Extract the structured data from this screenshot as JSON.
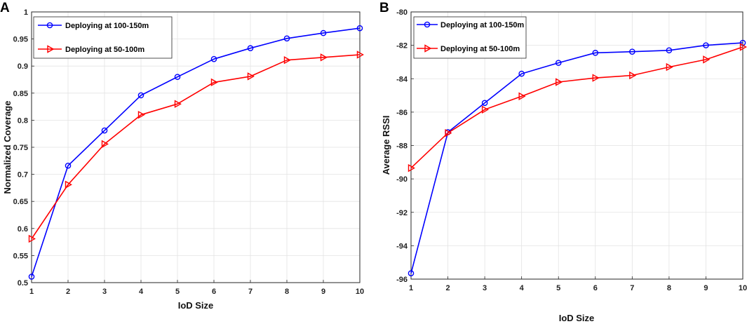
{
  "chart_data": [
    {
      "type": "line",
      "panel_label": "A",
      "title": "",
      "xlabel": "IoD Size",
      "ylabel": "Normalized Coverage",
      "xlim": [
        1,
        10
      ],
      "ylim": [
        0.5,
        1
      ],
      "x": [
        1,
        2,
        3,
        4,
        5,
        6,
        7,
        8,
        9,
        10
      ],
      "xticks": [
        "1",
        "2",
        "3",
        "4",
        "5",
        "6",
        "7",
        "8",
        "9",
        "10"
      ],
      "yticks": [
        "0.5",
        "0.55",
        "0.6",
        "0.65",
        "0.7",
        "0.75",
        "0.8",
        "0.85",
        "0.9",
        "0.95",
        "1"
      ],
      "grid": true,
      "legend_position": "top-left",
      "series": [
        {
          "name": "Deploying at 100-150m",
          "color": "#0000ff",
          "marker": "circle",
          "values": [
            0.511,
            0.716,
            0.781,
            0.846,
            0.88,
            0.913,
            0.933,
            0.951,
            0.961,
            0.97
          ]
        },
        {
          "name": "Deploying at 50-100m",
          "color": "#ff0000",
          "marker": "triangle-right",
          "values": [
            0.581,
            0.681,
            0.756,
            0.81,
            0.83,
            0.87,
            0.881,
            0.911,
            0.916,
            0.921
          ]
        }
      ]
    },
    {
      "type": "line",
      "panel_label": "B",
      "title": "",
      "xlabel": "IoD Size",
      "ylabel": "Average RSSI",
      "xlim": [
        1,
        10
      ],
      "ylim": [
        -96,
        -80
      ],
      "x": [
        1,
        2,
        3,
        4,
        5,
        6,
        7,
        8,
        9,
        10
      ],
      "xticks": [
        "1",
        "2",
        "3",
        "4",
        "5",
        "6",
        "7",
        "8",
        "9",
        "10"
      ],
      "yticks": [
        "-96",
        "-94",
        "-92",
        "-90",
        "-88",
        "-86",
        "-84",
        "-82",
        "-80"
      ],
      "grid": true,
      "legend_position": "top-left",
      "series": [
        {
          "name": "Deploying at 100-150m",
          "color": "#0000ff",
          "marker": "circle",
          "values": [
            -95.65,
            -87.2,
            -85.45,
            -83.7,
            -83.05,
            -82.45,
            -82.38,
            -82.3,
            -82.0,
            -81.85
          ]
        },
        {
          "name": "Deploying at 50-100m",
          "color": "#ff0000",
          "marker": "triangle-right",
          "values": [
            -89.35,
            -87.25,
            -85.85,
            -85.05,
            -84.2,
            -83.95,
            -83.8,
            -83.3,
            -82.85,
            -82.1
          ]
        }
      ]
    }
  ]
}
